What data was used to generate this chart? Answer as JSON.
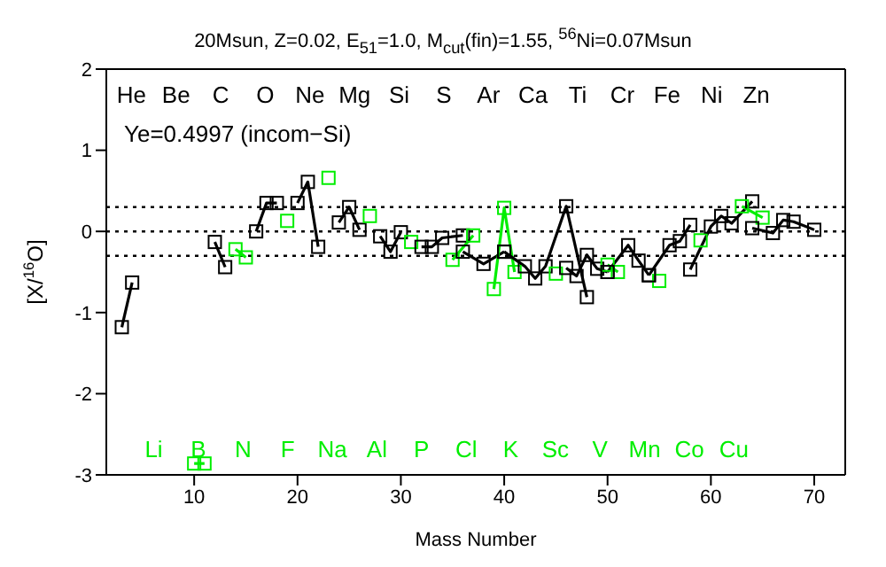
{
  "chart_data": {
    "type": "line",
    "title": "20Msun, Z=0.02, E$_{51}$=1.0, M$_{cut}$(fin)=1.55, $^{56}$Ni=0.07Msun",
    "xlabel": "Mass Number",
    "ylabel": "[X/$^{16}$O]",
    "xlim": [
      1.5,
      73
    ],
    "xticks": [
      10,
      20,
      30,
      40,
      50,
      60,
      70
    ],
    "ylim": [
      -3,
      2
    ],
    "yticks": [
      -3,
      -2,
      -1,
      0,
      1,
      2
    ],
    "marker": "square",
    "line_style": "solid",
    "ref_lines": [
      {
        "axis": "y",
        "value": 0.3,
        "line_style": "dotted",
        "color": "#000000"
      },
      {
        "axis": "y",
        "value": 0,
        "line_style": "dotted",
        "color": "#000000"
      },
      {
        "axis": "y",
        "value": -0.3,
        "line_style": "dotted",
        "color": "#000000"
      }
    ],
    "annotations": [
      "Ye=0.4997 (incom−Si)",
      "He",
      "Li",
      "Be",
      "B",
      "C",
      "N",
      "O",
      "F",
      "Ne",
      "Na",
      "Mg",
      "Al",
      "Si",
      "P",
      "S",
      "Cl",
      "Ar",
      "K",
      "Ca",
      "Sc",
      "Ti",
      "V",
      "Cr",
      "Mn",
      "Fe",
      "Co",
      "Ni",
      "Cu",
      "Zn"
    ],
    "series": [
      {
        "color": "#000000",
        "x": [
          3,
          4
        ],
        "values": [
          -1.18,
          -0.63
        ]
      },
      {
        "color": "#00ee00",
        "x": [
          10,
          11
        ],
        "values": [
          -2.86,
          -2.86
        ]
      },
      {
        "color": "#000000",
        "x": [
          12,
          13
        ],
        "values": [
          -0.13,
          -0.44
        ]
      },
      {
        "color": "#00ee00",
        "x": [
          14,
          15
        ],
        "values": [
          -0.22,
          -0.32
        ]
      },
      {
        "color": "#000000",
        "x": [
          16,
          17,
          18
        ],
        "values": [
          0.0,
          0.35,
          0.35
        ]
      },
      {
        "color": "#00ee00",
        "x": [
          19
        ],
        "values": [
          0.13
        ]
      },
      {
        "color": "#000000",
        "x": [
          20,
          21,
          22
        ],
        "values": [
          0.35,
          0.61,
          -0.19
        ]
      },
      {
        "color": "#00ee00",
        "x": [
          23
        ],
        "values": [
          0.66
        ]
      },
      {
        "color": "#000000",
        "x": [
          24,
          25,
          26
        ],
        "values": [
          0.11,
          0.3,
          0.02
        ]
      },
      {
        "color": "#00ee00",
        "x": [
          27
        ],
        "values": [
          0.19
        ]
      },
      {
        "color": "#000000",
        "x": [
          28,
          29,
          30
        ],
        "values": [
          -0.06,
          -0.25,
          -0.01
        ]
      },
      {
        "color": "#00ee00",
        "x": [
          31
        ],
        "values": [
          -0.13
        ]
      },
      {
        "color": "#000000",
        "x": [
          32,
          33,
          34,
          36
        ],
        "values": [
          -0.19,
          -0.19,
          -0.08,
          -0.05
        ]
      },
      {
        "color": "#00ee00",
        "x": [
          35,
          37
        ],
        "values": [
          -0.35,
          -0.05
        ]
      },
      {
        "color": "#000000",
        "x": [
          36,
          38,
          40
        ],
        "values": [
          -0.25,
          -0.4,
          -0.25
        ]
      },
      {
        "color": "#00ee00",
        "x": [
          39,
          40,
          41
        ],
        "values": [
          -0.71,
          0.29,
          -0.5
        ]
      },
      {
        "color": "#000000",
        "x": [
          40,
          42,
          43,
          44,
          46,
          48
        ],
        "values": [
          -0.25,
          -0.43,
          -0.58,
          -0.43,
          0.31,
          -0.81
        ]
      },
      {
        "color": "#00ee00",
        "x": [
          45
        ],
        "values": [
          -0.52
        ]
      },
      {
        "color": "#000000",
        "x": [
          46,
          47,
          48,
          49,
          50
        ],
        "values": [
          -0.45,
          -0.55,
          -0.29,
          -0.46,
          -0.5
        ]
      },
      {
        "color": "#00ee00",
        "x": [
          50,
          51
        ],
        "values": [
          -0.41,
          -0.5
        ]
      },
      {
        "color": "#000000",
        "x": [
          50,
          52,
          53,
          54
        ],
        "values": [
          -0.5,
          -0.17,
          -0.36,
          -0.54
        ]
      },
      {
        "color": "#00ee00",
        "x": [
          55
        ],
        "values": [
          -0.61
        ]
      },
      {
        "color": "#000000",
        "x": [
          54,
          56,
          57,
          58
        ],
        "values": [
          -0.54,
          -0.17,
          -0.12,
          0.08
        ]
      },
      {
        "color": "#00ee00",
        "x": [
          59
        ],
        "values": [
          -0.11
        ]
      },
      {
        "color": "#000000",
        "x": [
          58,
          60,
          61,
          62,
          64
        ],
        "values": [
          -0.47,
          0.06,
          0.19,
          0.1,
          0.37
        ]
      },
      {
        "color": "#00ee00",
        "x": [
          63,
          65
        ],
        "values": [
          0.31,
          0.17
        ]
      },
      {
        "color": "#000000",
        "x": [
          64,
          66,
          67,
          68,
          70
        ],
        "values": [
          0.04,
          -0.02,
          0.14,
          0.12,
          0.02
        ]
      }
    ]
  }
}
